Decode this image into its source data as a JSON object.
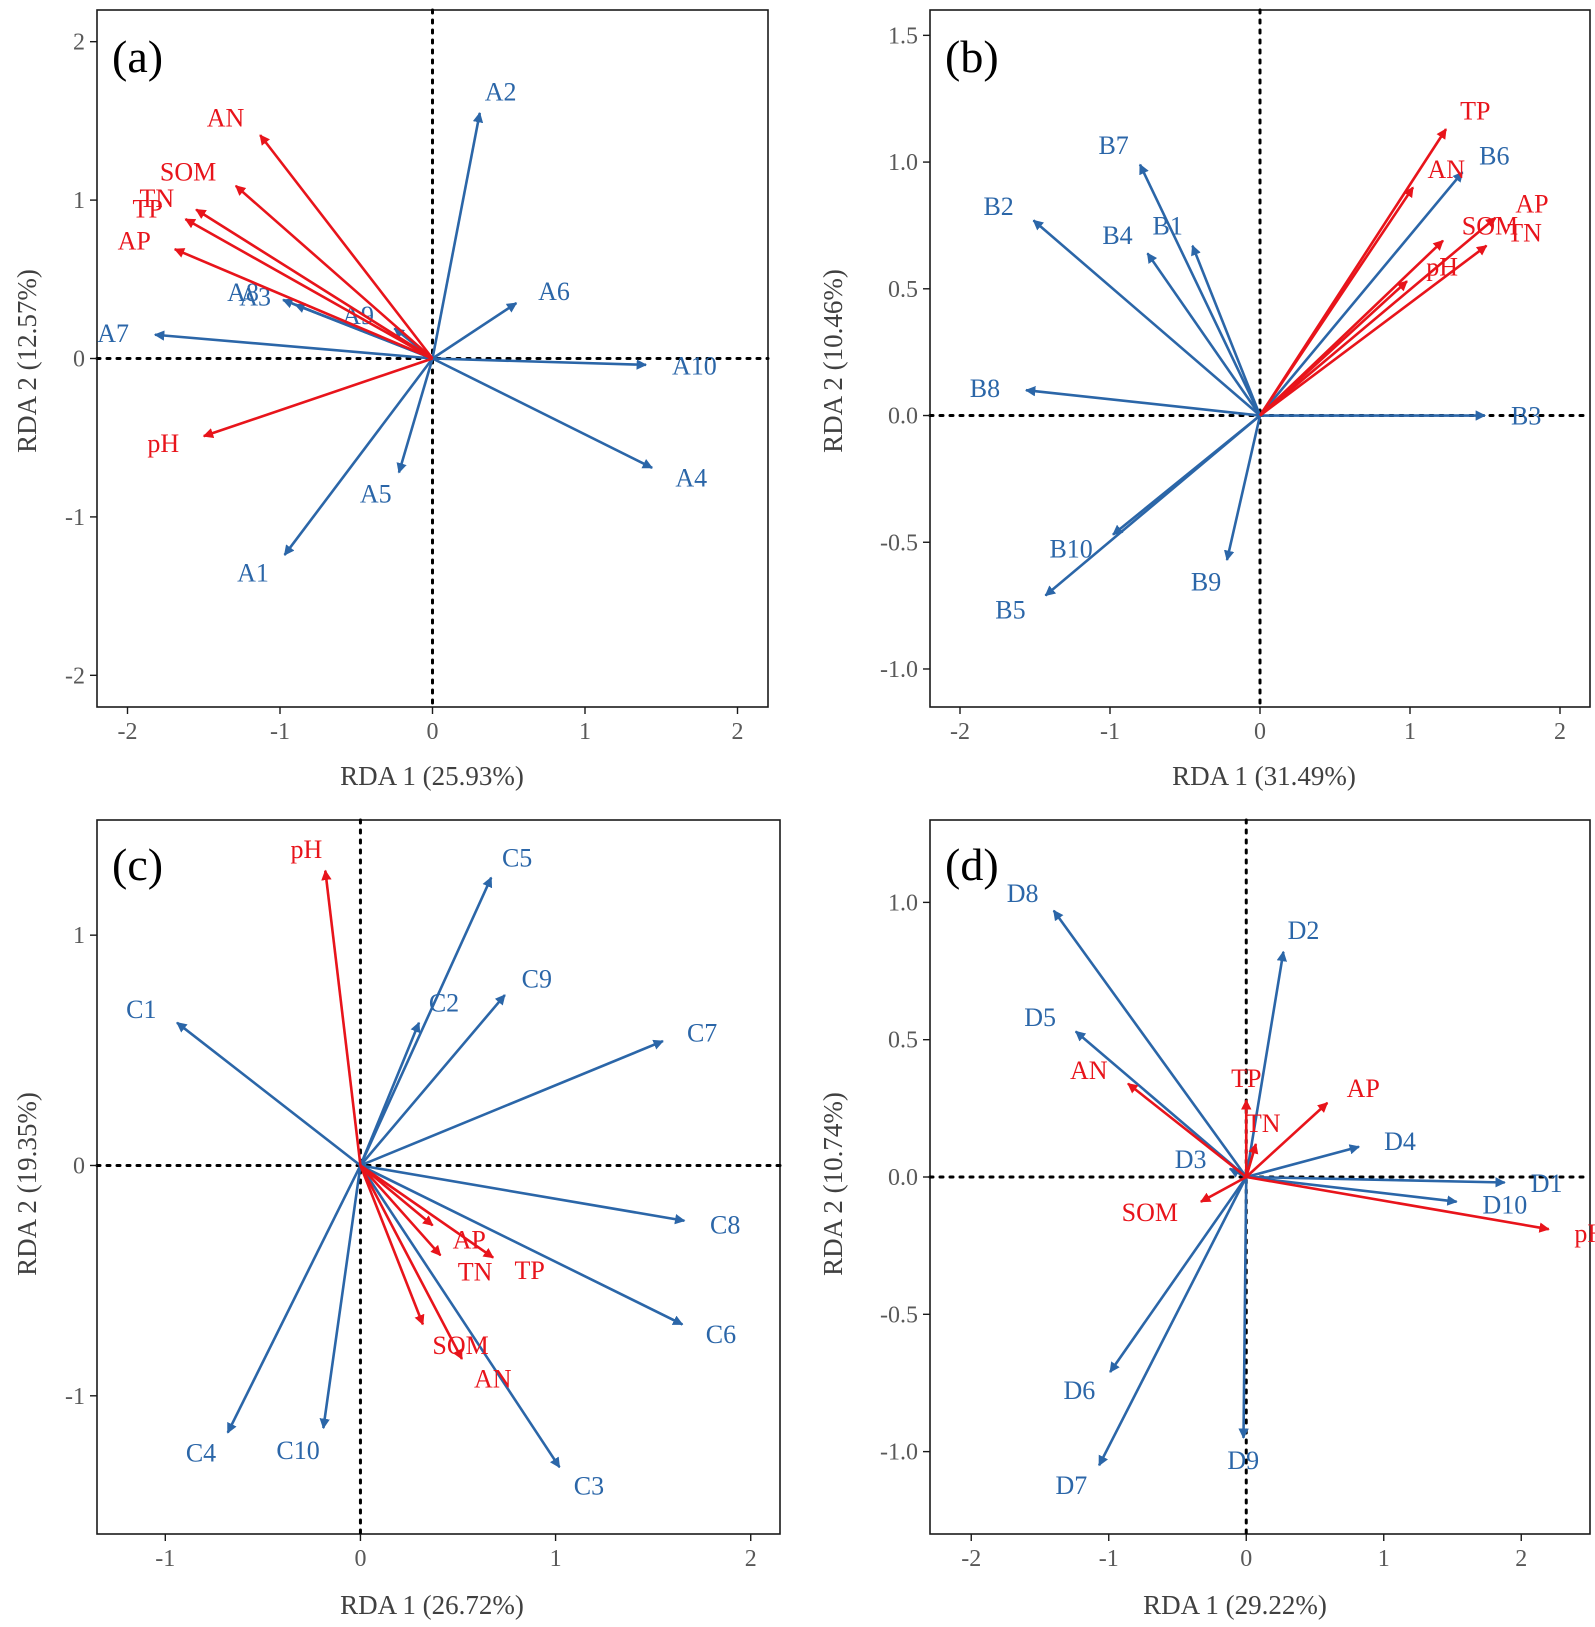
{
  "colors": {
    "species": "#2b66a8",
    "environment": "#e8141b",
    "frame": "#1a1a1a",
    "zero_line": "#000000"
  },
  "chart_data": [
    {
      "type": "scatter",
      "subtype": "rda-biplot",
      "panel": "(a)",
      "xlabel": "RDA 1 (25.93%)",
      "ylabel": "RDA 2 (12.57%)",
      "xlim": [
        -2.2,
        2.2
      ],
      "ylim": [
        -2.2,
        2.2
      ],
      "xticks": [
        -2,
        -1,
        0,
        1,
        2
      ],
      "xtick_labels": [
        "-2",
        "-1",
        "0",
        "1",
        "2"
      ],
      "yticks": [
        -2,
        -1,
        0,
        1,
        2
      ],
      "ytick_labels": [
        "-2",
        "-1",
        "0",
        "1",
        "2"
      ],
      "species": [
        {
          "name": "A1",
          "x": -0.97,
          "y": -1.24
        },
        {
          "name": "A2",
          "x": 0.31,
          "y": 1.55
        },
        {
          "name": "A3",
          "x": -0.9,
          "y": 0.34
        },
        {
          "name": "A4",
          "x": 1.44,
          "y": -0.69
        },
        {
          "name": "A5",
          "x": -0.22,
          "y": -0.72
        },
        {
          "name": "A6",
          "x": 0.55,
          "y": 0.35
        },
        {
          "name": "A7",
          "x": -1.82,
          "y": 0.15
        },
        {
          "name": "A8",
          "x": -0.98,
          "y": 0.37
        },
        {
          "name": "A9",
          "x": -0.25,
          "y": 0.19
        },
        {
          "name": "A10",
          "x": 1.4,
          "y": -0.04
        }
      ],
      "environment": [
        {
          "name": "AN",
          "x": -1.13,
          "y": 1.41
        },
        {
          "name": "SOM",
          "x": -1.29,
          "y": 1.09
        },
        {
          "name": "TN",
          "x": -1.55,
          "y": 0.94
        },
        {
          "name": "TP",
          "x": -1.62,
          "y": 0.88
        },
        {
          "name": "AP",
          "x": -1.69,
          "y": 0.69
        },
        {
          "name": "pH",
          "x": -1.5,
          "y": -0.49
        }
      ]
    },
    {
      "type": "scatter",
      "subtype": "rda-biplot",
      "panel": "(b)",
      "xlabel": "RDA 1 (31.49%)",
      "ylabel": "RDA 2 (10.46%)",
      "xlim": [
        -2.2,
        2.2
      ],
      "ylim": [
        -1.15,
        1.6
      ],
      "xticks": [
        -2,
        -1,
        0,
        1,
        2
      ],
      "xtick_labels": [
        "-2",
        "-1",
        "0",
        "1",
        "2"
      ],
      "yticks": [
        -1,
        -0.5,
        0,
        0.5,
        1,
        1.5
      ],
      "ytick_labels": [
        "-1.0",
        "-0.5",
        "0.0",
        "0.5",
        "1.0",
        "1.5"
      ],
      "species": [
        {
          "name": "B1",
          "x": -0.45,
          "y": 0.67
        },
        {
          "name": "B2",
          "x": -1.51,
          "y": 0.77
        },
        {
          "name": "B3",
          "x": 1.5,
          "y": 0.0
        },
        {
          "name": "B4",
          "x": -0.75,
          "y": 0.64
        },
        {
          "name": "B5",
          "x": -1.43,
          "y": -0.71
        },
        {
          "name": "B6",
          "x": 1.35,
          "y": 0.96
        },
        {
          "name": "B7",
          "x": -0.8,
          "y": 0.99
        },
        {
          "name": "B8",
          "x": -1.56,
          "y": 0.1
        },
        {
          "name": "B9",
          "x": -0.22,
          "y": -0.57
        },
        {
          "name": "B10",
          "x": -0.98,
          "y": -0.47
        }
      ],
      "environment": [
        {
          "name": "TP",
          "x": 1.24,
          "y": 1.13
        },
        {
          "name": "AN",
          "x": 1.02,
          "y": 0.9
        },
        {
          "name": "SOM",
          "x": 1.22,
          "y": 0.69
        },
        {
          "name": "AP",
          "x": 1.57,
          "y": 0.78
        },
        {
          "name": "TN",
          "x": 1.51,
          "y": 0.67
        },
        {
          "name": "pH",
          "x": 0.98,
          "y": 0.53
        }
      ]
    },
    {
      "type": "scatter",
      "subtype": "rda-biplot",
      "panel": "(c)",
      "xlabel": "RDA 1 (26.72%)",
      "ylabel": "RDA 2 (19.35%)",
      "xlim": [
        -1.35,
        2.15
      ],
      "ylim": [
        -1.6,
        1.5
      ],
      "xticks": [
        -1,
        0,
        1,
        2
      ],
      "xtick_labels": [
        "-1",
        "0",
        "1",
        "2"
      ],
      "yticks": [
        -1,
        0,
        1
      ],
      "ytick_labels": [
        "-1",
        "0",
        "1"
      ],
      "species": [
        {
          "name": "C1",
          "x": -0.94,
          "y": 0.62
        },
        {
          "name": "C2",
          "x": 0.3,
          "y": 0.62
        },
        {
          "name": "C3",
          "x": 1.02,
          "y": -1.31
        },
        {
          "name": "C4",
          "x": -0.68,
          "y": -1.16
        },
        {
          "name": "C5",
          "x": 0.67,
          "y": 1.25
        },
        {
          "name": "C6",
          "x": 1.65,
          "y": -0.69
        },
        {
          "name": "C7",
          "x": 1.55,
          "y": 0.54
        },
        {
          "name": "C8",
          "x": 1.66,
          "y": -0.24
        },
        {
          "name": "C9",
          "x": 0.74,
          "y": 0.74
        },
        {
          "name": "C10",
          "x": -0.19,
          "y": -1.14
        }
      ],
      "environment": [
        {
          "name": "pH",
          "x": -0.18,
          "y": 1.28
        },
        {
          "name": "AP",
          "x": 0.37,
          "y": -0.26
        },
        {
          "name": "TN",
          "x": 0.41,
          "y": -0.39
        },
        {
          "name": "TP",
          "x": 0.68,
          "y": -0.4
        },
        {
          "name": "SOM",
          "x": 0.32,
          "y": -0.69
        },
        {
          "name": "AN",
          "x": 0.52,
          "y": -0.84
        }
      ]
    },
    {
      "type": "scatter",
      "subtype": "rda-biplot",
      "panel": "(d)",
      "xlabel": "RDA 1 (29.22%)",
      "ylabel": "RDA 2 (10.74%)",
      "xlim": [
        -2.3,
        2.5
      ],
      "ylim": [
        -1.3,
        1.3
      ],
      "xticks": [
        -2,
        -1,
        0,
        1,
        2
      ],
      "xtick_labels": [
        "-2",
        "-1",
        "0",
        "1",
        "2"
      ],
      "yticks": [
        -1,
        -0.5,
        0,
        0.5,
        1
      ],
      "ytick_labels": [
        "-1.0",
        "-0.5",
        "0.0",
        "0.5",
        "1.0"
      ],
      "species": [
        {
          "name": "D1",
          "x": 1.88,
          "y": -0.02
        },
        {
          "name": "D2",
          "x": 0.27,
          "y": 0.82
        },
        {
          "name": "D3",
          "x": -0.12,
          "y": 0.03
        },
        {
          "name": "D4",
          "x": 0.82,
          "y": 0.11
        },
        {
          "name": "D5",
          "x": -1.24,
          "y": 0.53
        },
        {
          "name": "D6",
          "x": -0.99,
          "y": -0.71
        },
        {
          "name": "D7",
          "x": -1.07,
          "y": -1.05
        },
        {
          "name": "D8",
          "x": -1.4,
          "y": 0.97
        },
        {
          "name": "D9",
          "x": -0.02,
          "y": -0.95
        },
        {
          "name": "D10",
          "x": 1.53,
          "y": -0.09
        }
      ],
      "environment": [
        {
          "name": "TP",
          "x": 0.0,
          "y": 0.28
        },
        {
          "name": "AN",
          "x": -0.86,
          "y": 0.34
        },
        {
          "name": "TN",
          "x": 0.07,
          "y": 0.12
        },
        {
          "name": "AP",
          "x": 0.59,
          "y": 0.27
        },
        {
          "name": "SOM",
          "x": -0.33,
          "y": -0.09
        },
        {
          "name": "pH",
          "x": 2.2,
          "y": -0.19
        }
      ]
    }
  ]
}
